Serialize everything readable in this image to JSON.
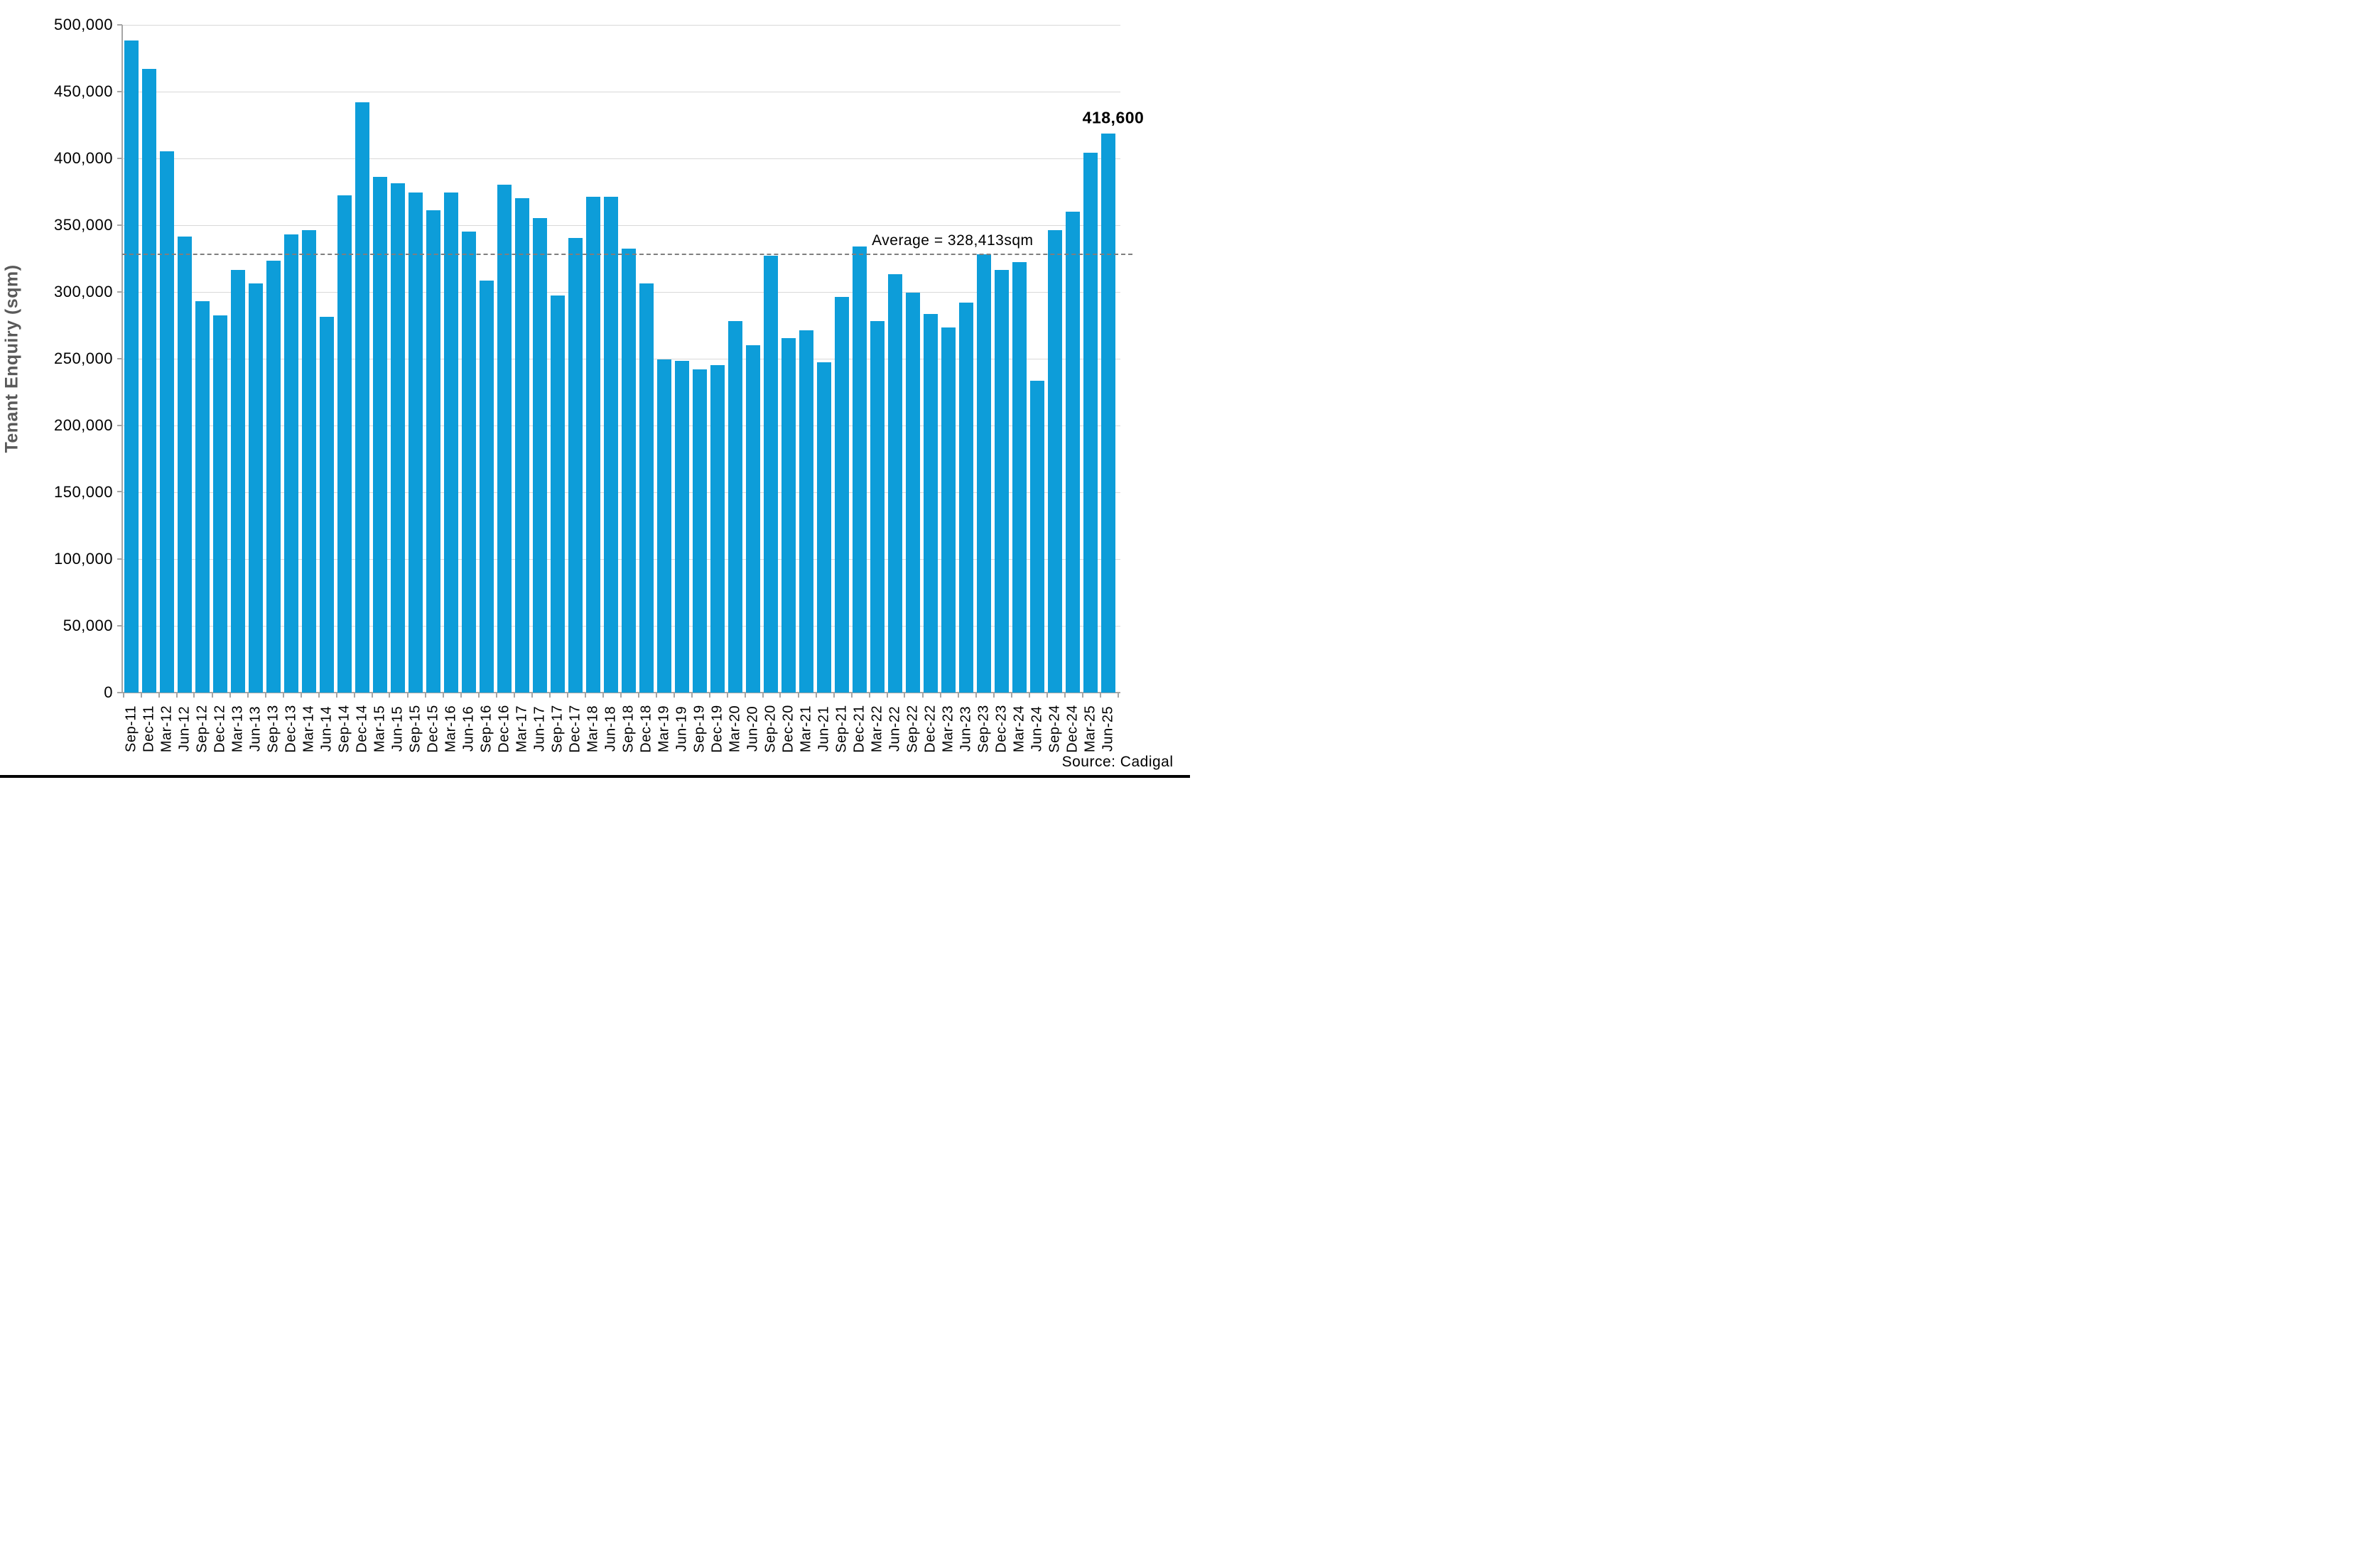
{
  "chart_data": {
    "type": "bar",
    "title": "",
    "xlabel": "",
    "ylabel": "Tenant Enquiry  (sqm)",
    "ylim": [
      0,
      500000
    ],
    "ytick_step": 50000,
    "ytick_labels": [
      "0",
      "50,000",
      "100,000",
      "150,000",
      "200,000",
      "250,000",
      "300,000",
      "350,000",
      "400,000",
      "450,000",
      "500,000"
    ],
    "grid": "horizontal",
    "legend_position": "none",
    "bar_color": "#0d9dd9",
    "categories": [
      "Sep-11",
      "Dec-11",
      "Mar-12",
      "Jun-12",
      "Sep-12",
      "Dec-12",
      "Mar-13",
      "Jun-13",
      "Sep-13",
      "Dec-13",
      "Mar-14",
      "Jun-14",
      "Sep-14",
      "Dec-14",
      "Mar-15",
      "Jun-15",
      "Sep-15",
      "Dec-15",
      "Mar-16",
      "Jun-16",
      "Sep-16",
      "Dec-16",
      "Mar-17",
      "Jun-17",
      "Sep-17",
      "Dec-17",
      "Mar-18",
      "Jun-18",
      "Sep-18",
      "Dec-18",
      "Mar-19",
      "Jun-19",
      "Sep-19",
      "Dec-19",
      "Mar-20",
      "Jun-20",
      "Sep-20",
      "Dec-20",
      "Mar-21",
      "Jun-21",
      "Sep-21",
      "Dec-21",
      "Mar-22",
      "Jun-22",
      "Sep-22",
      "Dec-22",
      "Mar-23",
      "Jun-23",
      "Sep-23",
      "Dec-23",
      "Mar-24",
      "Jun-24",
      "Sep-24",
      "Dec-24",
      "Mar-25",
      "Jun-25"
    ],
    "values": [
      488000,
      467000,
      405000,
      341000,
      293000,
      282000,
      316000,
      306000,
      323000,
      343000,
      346000,
      281000,
      372000,
      442000,
      386000,
      381000,
      374000,
      361000,
      374000,
      345000,
      308000,
      380000,
      370000,
      355000,
      297000,
      340000,
      371000,
      371000,
      332000,
      306000,
      249000,
      248000,
      242000,
      245000,
      278000,
      260000,
      327000,
      265000,
      271000,
      247000,
      296000,
      334000,
      278000,
      313000,
      299000,
      283000,
      273000,
      292000,
      328000,
      316000,
      322000,
      233000,
      346000,
      360000,
      404000,
      418600
    ],
    "average_line": {
      "value": 328413,
      "label": "Average = 328,413sqm"
    },
    "last_bar_label": "418,600",
    "source": "Source: Cadigal"
  }
}
